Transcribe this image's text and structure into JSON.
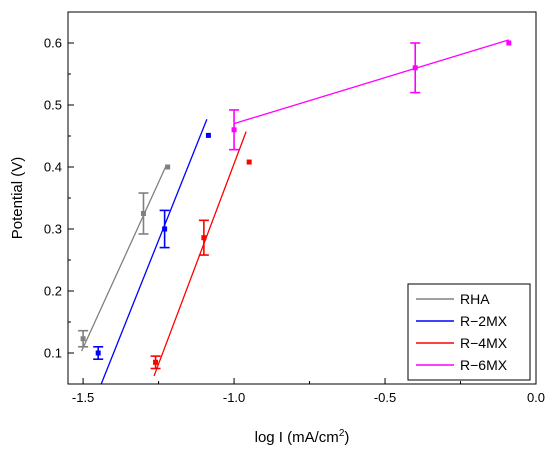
{
  "chart_data": {
    "type": "scatter",
    "title": "",
    "xlabel_main": "log I (mA/cm",
    "xlabel_sup": "2",
    "xlabel_tail": ")",
    "ylabel": "Potential (V)",
    "xlim": [
      -1.55,
      0.0
    ],
    "ylim": [
      0.05,
      0.65
    ],
    "x_ticks": [
      -1.5,
      -1.0,
      -0.5,
      0.0
    ],
    "x_tick_labels": [
      "-1.5",
      "-1.0",
      "-0.5",
      "0.0"
    ],
    "y_ticks": [
      0.1,
      0.2,
      0.3,
      0.4,
      0.5,
      0.6
    ],
    "y_tick_labels": [
      "0.1",
      "0.2",
      "0.3",
      "0.4",
      "0.5",
      "0.6"
    ],
    "grid": false,
    "legend_position": "bottom-right",
    "series": [
      {
        "name": "RHA",
        "color": "#808080",
        "points": [
          {
            "x": -1.5,
            "y": 0.123,
            "err": 0.013
          },
          {
            "x": -1.3,
            "y": 0.325,
            "err": 0.033
          },
          {
            "x": -1.22,
            "y": 0.4,
            "err": 0
          }
        ],
        "fit": [
          [
            -1.505,
            0.103
          ],
          [
            -1.225,
            0.402
          ]
        ]
      },
      {
        "name": "R−2MX",
        "color": "#0000ff",
        "points": [
          {
            "x": -1.45,
            "y": 0.1,
            "err": 0.01
          },
          {
            "x": -1.23,
            "y": 0.3,
            "err": 0.03
          },
          {
            "x": -1.085,
            "y": 0.451,
            "err": 0
          }
        ],
        "fit": [
          [
            -1.44,
            0.05
          ],
          [
            -1.09,
            0.477
          ]
        ]
      },
      {
        "name": "R−4MX",
        "color": "#ff0000",
        "points": [
          {
            "x": -1.26,
            "y": 0.085,
            "err": 0.01
          },
          {
            "x": -1.1,
            "y": 0.286,
            "err": 0.028
          },
          {
            "x": -0.95,
            "y": 0.408,
            "err": 0
          }
        ],
        "fit": [
          [
            -1.265,
            0.063
          ],
          [
            -0.96,
            0.457
          ]
        ]
      },
      {
        "name": "R−6MX",
        "color": "#ff00ff",
        "points": [
          {
            "x": -1.0,
            "y": 0.46,
            "err": 0.032
          },
          {
            "x": -0.4,
            "y": 0.56,
            "err": 0.04
          },
          {
            "x": -0.09,
            "y": 0.6,
            "err": 0
          }
        ],
        "fit": [
          [
            -1.0,
            0.47
          ],
          [
            -0.09,
            0.605
          ]
        ]
      }
    ]
  }
}
